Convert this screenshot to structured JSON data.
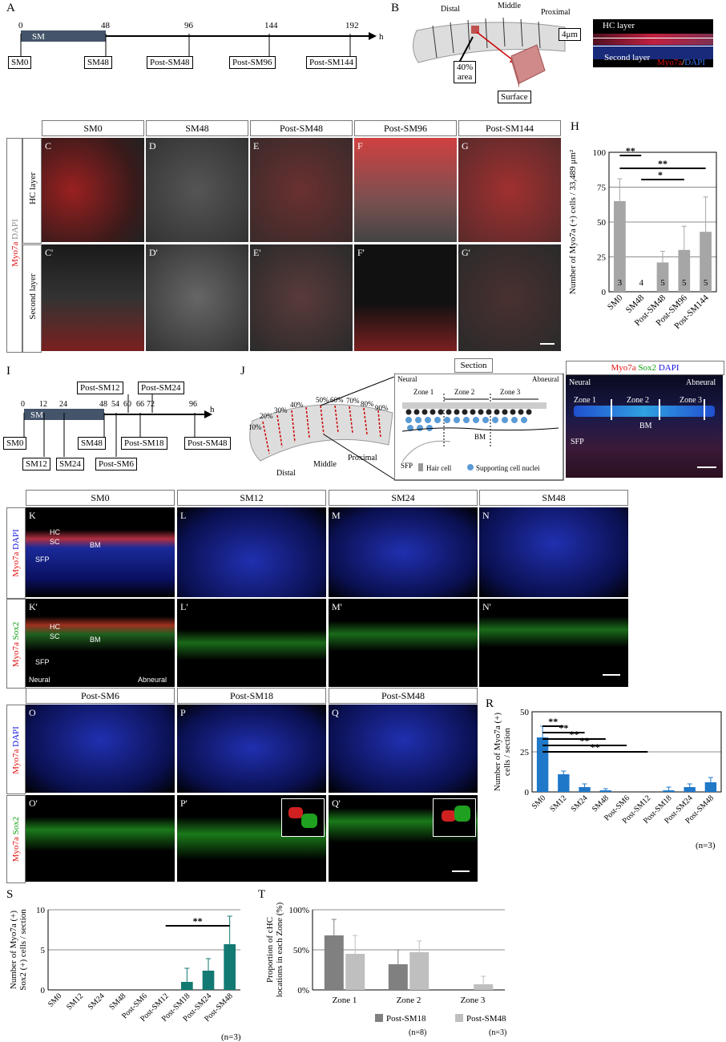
{
  "panels": {
    "A": "A",
    "B": "B",
    "H": "H",
    "I": "I",
    "J": "J",
    "R": "R",
    "S": "S",
    "T": "T"
  },
  "timeline_a": {
    "ticks": [
      "0",
      "48",
      "96",
      "144",
      "192"
    ],
    "unit": "h",
    "bar_label": "SM",
    "boxes": [
      "SM0",
      "SM48",
      "Post-SM48",
      "Post-SM96",
      "Post-SM144"
    ]
  },
  "diagram_b": {
    "distal": "Distal",
    "middle": "Middle",
    "proximal": "Proximal",
    "area": "40%\narea",
    "surface": "Surface",
    "depth": "4μm",
    "hc_layer": "HC layer",
    "second_layer": "Second layer",
    "stain_myo7a": "Myo7a",
    "stain_sep": "/",
    "stain_dapi": "DAPI"
  },
  "grid1": {
    "columns": [
      "SM0",
      "SM48",
      "Post-SM48",
      "Post-SM96",
      "Post-SM144"
    ],
    "row_labels": [
      "HC layer",
      "Second layer"
    ],
    "side_myo7a": "Myo7a",
    "side_dapi": "DAPI",
    "top_letters": [
      "C",
      "D",
      "E",
      "F",
      "G"
    ],
    "bottom_letters": [
      "C'",
      "D'",
      "E'",
      "F'",
      "G'"
    ]
  },
  "chart_h": {
    "ylabel": "Number of Myo7a (+) cells / 33,489 μm²",
    "yticks": [
      "0",
      "25",
      "50",
      "75",
      "100"
    ],
    "sig": [
      "**",
      "**",
      "*"
    ]
  },
  "timeline_i": {
    "ticks": [
      "0",
      "12",
      "24",
      "48",
      "54",
      "60",
      "66",
      "72",
      "96"
    ],
    "unit": "h",
    "bar_label": "SM",
    "boxes": [
      "SM0",
      "SM12",
      "SM24",
      "SM48",
      "Post-SM6",
      "Post-SM12",
      "Post-SM18",
      "Post-SM24",
      "Post-SM48"
    ]
  },
  "diagram_j": {
    "percents": [
      "10%",
      "20%",
      "30%",
      "40%",
      "50%",
      "60%",
      "70%",
      "80%",
      "90%"
    ],
    "distal": "Distal",
    "middle": "Middle",
    "proximal": "Proximal",
    "section": "Section",
    "neural": "Neural",
    "abneural": "Abneural",
    "zones": [
      "Zone 1",
      "Zone 2",
      "Zone 3"
    ],
    "bm": "BM",
    "sfp": "SFP",
    "hair_cell": "Hair cell",
    "supporting": "Supporting cell nuclei",
    "stain_myo7a": "Myo7a",
    "stain_sox2": "Sox2",
    "stain_dapi": "DAPI"
  },
  "grid2": {
    "columns": [
      "SM0",
      "SM12",
      "SM24",
      "SM48"
    ],
    "top_letters": [
      "K",
      "L",
      "M",
      "N"
    ],
    "bottom_letters": [
      "K'",
      "L'",
      "M'",
      "N'"
    ],
    "row1_red": "Myo7a",
    "row1_blue": "DAPI",
    "row2_red": "Myo7a",
    "row2_green": "Sox2",
    "hc": "HC",
    "sc": "SC",
    "bm": "BM",
    "sfp": "SFP",
    "neural": "Neural",
    "abneural": "Abneural"
  },
  "grid3": {
    "columns": [
      "Post-SM6",
      "Post-SM18",
      "Post-SM48"
    ],
    "top_letters": [
      "O",
      "P",
      "Q"
    ],
    "bottom_letters": [
      "O'",
      "P'",
      "Q'"
    ],
    "row1_red": "Myo7a",
    "row1_blue": "DAPI",
    "row2_red": "Myo7a",
    "row2_green": "Sox2"
  },
  "chart_r": {
    "ylabel": "Number of Myo7a (+) cells / section",
    "yticks": [
      "0",
      "25",
      "50"
    ],
    "sig": [
      "**",
      "**",
      "**",
      "**",
      "**"
    ],
    "n_note": "(n=3)"
  },
  "chart_s": {
    "ylabel": "Number of Myo7a (+) Sox2 (+) cells / section",
    "yticks": [
      "0",
      "5",
      "10"
    ],
    "sig": [
      "**"
    ],
    "n_note": "(n=3)"
  },
  "chart_t": {
    "ylabel": "Proportion of cHC locations in each Zone (%)",
    "yticks": [
      "0%",
      "50%",
      "100%"
    ],
    "legend": [
      {
        "name": "Post-SM18",
        "n": "(n=8)"
      },
      {
        "name": "Post-SM48",
        "n": "(n=3)"
      }
    ]
  },
  "colors": {
    "gray_bar": "#a6a6a6",
    "blue_bar": "#1f78c8",
    "teal_bar": "#127a72",
    "t_dark": "#808080",
    "t_light": "#bfbfbf"
  },
  "chart_data": [
    {
      "type": "bar",
      "title": "",
      "xlabel": "",
      "ylabel": "Number of Myo7a (+) cells / 33,489 μm²",
      "categories": [
        "SM0",
        "SM48",
        "Post-SM48",
        "Post-SM96",
        "Post-SM144"
      ],
      "values": [
        65,
        0,
        21,
        30,
        43
      ],
      "errors": [
        16,
        0,
        8,
        17,
        25
      ],
      "n_labels": [
        "3",
        "4",
        "5",
        "5",
        "5"
      ],
      "ylim": [
        0,
        100
      ]
    },
    {
      "type": "bar",
      "title": "",
      "xlabel": "",
      "ylabel": "Number of Myo7a (+) cells / section",
      "categories": [
        "SM0",
        "SM12",
        "SM24",
        "SM48",
        "Post-SM6",
        "Post-SM12",
        "Post-SM18",
        "Post-SM24",
        "Post-SM48"
      ],
      "values": [
        34,
        11,
        3,
        1,
        0,
        0,
        1,
        3,
        6
      ],
      "errors": [
        7,
        2,
        2,
        1,
        0,
        0,
        2,
        2,
        3
      ],
      "ylim": [
        0,
        50
      ]
    },
    {
      "type": "bar",
      "title": "",
      "xlabel": "",
      "ylabel": "Number of Myo7a (+) Sox2 (+) cells / section",
      "categories": [
        "SM0",
        "SM12",
        "SM24",
        "SM48",
        "Post-SM6",
        "Post-SM12",
        "Post-SM18",
        "Post-SM24",
        "Post-SM48"
      ],
      "values": [
        0,
        0,
        0,
        0,
        0,
        0,
        1.0,
        2.4,
        5.7
      ],
      "errors": [
        0,
        0,
        0,
        0,
        0,
        0,
        1.7,
        1.5,
        3.5
      ],
      "ylim": [
        0,
        10
      ]
    },
    {
      "type": "bar",
      "title": "",
      "xlabel": "",
      "ylabel": "Proportion of cHC locations in each Zone (%)",
      "categories": [
        "Zone 1",
        "Zone 2",
        "Zone 3"
      ],
      "series": [
        {
          "name": "Post-SM18",
          "values": [
            68,
            32,
            0
          ],
          "errors": [
            20,
            18,
            0
          ]
        },
        {
          "name": "Post-SM48",
          "values": [
            45,
            47,
            7
          ],
          "errors": [
            23,
            14,
            10
          ]
        }
      ],
      "ylim": [
        0,
        100
      ]
    }
  ]
}
